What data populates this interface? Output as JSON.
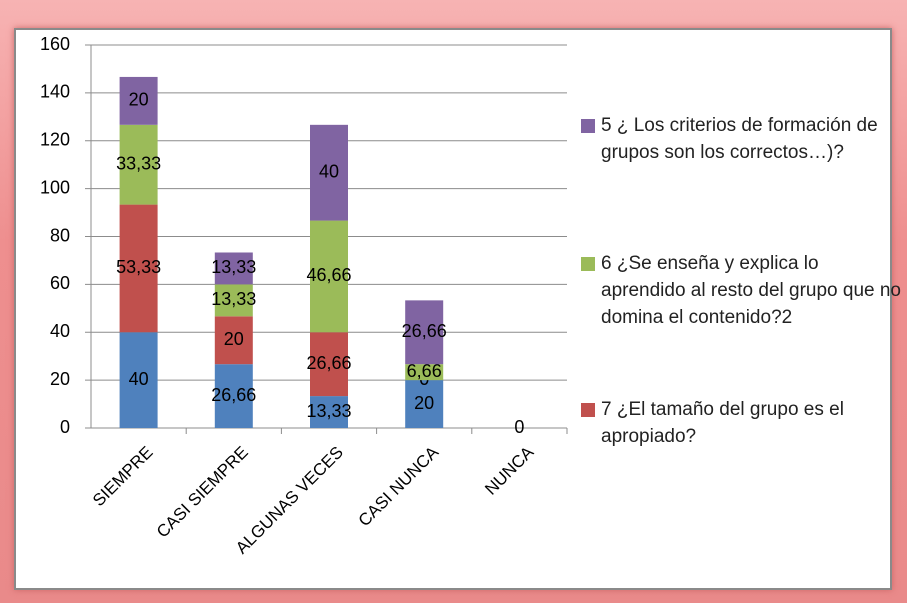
{
  "chart_data": {
    "type": "bar",
    "stacked": true,
    "categories": [
      "SIEMPRE",
      "CASI SIEMPRE",
      "ALGUNAS VECES",
      "CASI NUNCA",
      "NUNCA"
    ],
    "series": [
      {
        "color": "#4f81bd",
        "values": [
          40,
          26.66,
          13.33,
          20,
          0
        ],
        "value_labels": [
          "40",
          "26,66",
          "13,33",
          "20",
          "0"
        ]
      },
      {
        "name": "7 ¿El tamaño del grupo es el apropiado?",
        "color": "#c0504d",
        "values": [
          53.33,
          20,
          26.66,
          0,
          0
        ],
        "value_labels": [
          "53,33",
          "20",
          "26,66",
          "0",
          null
        ]
      },
      {
        "name": "6 ¿Se enseña y explica lo aprendido al resto del grupo que no domina el contenido?2",
        "color": "#9bbb59",
        "values": [
          33.33,
          13.33,
          46.66,
          6.66,
          0
        ],
        "value_labels": [
          "33,33",
          "13,33",
          "46,66",
          "6,66",
          null
        ]
      },
      {
        "name": "5 ¿ Los criterios de formación de grupos son los correctos…)?",
        "color": "#8064a2",
        "values": [
          20,
          13.33,
          40,
          26.66,
          0
        ],
        "value_labels": [
          "20",
          "13,33",
          "40",
          "26,66",
          null
        ]
      }
    ],
    "ylim": [
      0,
      160
    ],
    "yticks": [
      0,
      20,
      40,
      60,
      80,
      100,
      120,
      140,
      160
    ],
    "grid": true
  }
}
